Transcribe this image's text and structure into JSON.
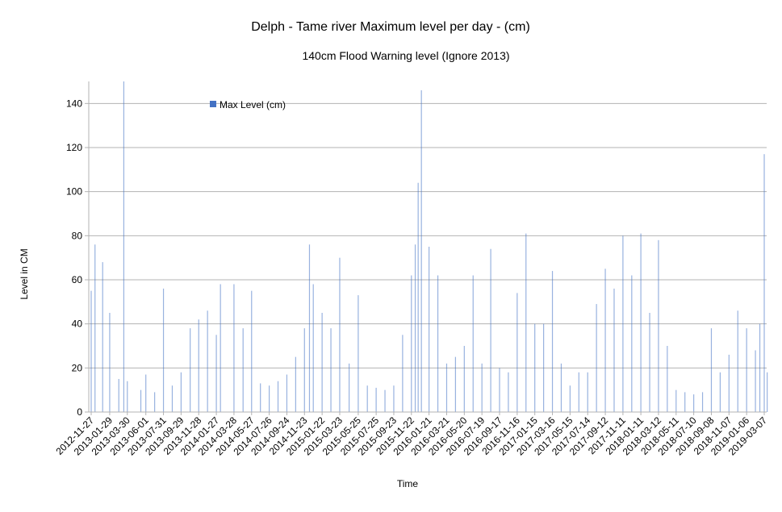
{
  "chart_data": {
    "type": "bar",
    "title": "Delph - Tame river Maximum level per day  - (cm)",
    "subtitle": "140cm  Flood Warning level (Ignore 2013)",
    "xlabel": "Time",
    "ylabel": "Level in CM",
    "ylim": [
      0,
      150
    ],
    "yticks": [
      0,
      20,
      40,
      60,
      80,
      100,
      120,
      140
    ],
    "grid": true,
    "legend": {
      "placement": "top-left",
      "entries": [
        "Max Level (cm)"
      ]
    },
    "series": [
      {
        "name": "Max Level (cm)",
        "color": "#4472c4",
        "points": [
          {
            "x": "2012-11-27",
            "y": 55
          },
          {
            "x": "2012-12-10",
            "y": 76
          },
          {
            "x": "2013-01-05",
            "y": 68
          },
          {
            "x": "2013-01-29",
            "y": 45
          },
          {
            "x": "2013-03-01",
            "y": 15
          },
          {
            "x": "2013-03-18",
            "y": 150
          },
          {
            "x": "2013-03-30",
            "y": 14
          },
          {
            "x": "2013-05-15",
            "y": 10
          },
          {
            "x": "2013-06-01",
            "y": 17
          },
          {
            "x": "2013-07-01",
            "y": 9
          },
          {
            "x": "2013-07-31",
            "y": 56
          },
          {
            "x": "2013-08-30",
            "y": 12
          },
          {
            "x": "2013-09-29",
            "y": 18
          },
          {
            "x": "2013-10-30",
            "y": 38
          },
          {
            "x": "2013-11-28",
            "y": 42
          },
          {
            "x": "2013-12-28",
            "y": 46
          },
          {
            "x": "2014-01-27",
            "y": 35
          },
          {
            "x": "2014-02-10",
            "y": 58
          },
          {
            "x": "2014-03-28",
            "y": 58
          },
          {
            "x": "2014-04-28",
            "y": 38
          },
          {
            "x": "2014-05-27",
            "y": 55
          },
          {
            "x": "2014-06-26",
            "y": 13
          },
          {
            "x": "2014-07-26",
            "y": 12
          },
          {
            "x": "2014-08-25",
            "y": 14
          },
          {
            "x": "2014-09-24",
            "y": 17
          },
          {
            "x": "2014-10-24",
            "y": 25
          },
          {
            "x": "2014-11-23",
            "y": 38
          },
          {
            "x": "2014-12-10",
            "y": 76
          },
          {
            "x": "2014-12-23",
            "y": 58
          },
          {
            "x": "2015-01-22",
            "y": 45
          },
          {
            "x": "2015-02-21",
            "y": 38
          },
          {
            "x": "2015-03-23",
            "y": 70
          },
          {
            "x": "2015-04-24",
            "y": 22
          },
          {
            "x": "2015-05-25",
            "y": 53
          },
          {
            "x": "2015-06-25",
            "y": 12
          },
          {
            "x": "2015-07-25",
            "y": 11
          },
          {
            "x": "2015-08-24",
            "y": 10
          },
          {
            "x": "2015-09-23",
            "y": 12
          },
          {
            "x": "2015-10-23",
            "y": 35
          },
          {
            "x": "2015-11-22",
            "y": 62
          },
          {
            "x": "2015-12-05",
            "y": 76
          },
          {
            "x": "2015-12-15",
            "y": 104
          },
          {
            "x": "2015-12-26",
            "y": 146
          },
          {
            "x": "2016-01-21",
            "y": 75
          },
          {
            "x": "2016-02-20",
            "y": 62
          },
          {
            "x": "2016-03-21",
            "y": 22
          },
          {
            "x": "2016-04-20",
            "y": 25
          },
          {
            "x": "2016-05-20",
            "y": 30
          },
          {
            "x": "2016-06-19",
            "y": 62
          },
          {
            "x": "2016-07-19",
            "y": 22
          },
          {
            "x": "2016-08-18",
            "y": 74
          },
          {
            "x": "2016-09-17",
            "y": 20
          },
          {
            "x": "2016-10-17",
            "y": 18
          },
          {
            "x": "2016-11-16",
            "y": 54
          },
          {
            "x": "2016-12-16",
            "y": 81
          },
          {
            "x": "2017-01-15",
            "y": 40
          },
          {
            "x": "2017-02-14",
            "y": 40
          },
          {
            "x": "2017-03-16",
            "y": 64
          },
          {
            "x": "2017-04-15",
            "y": 22
          },
          {
            "x": "2017-05-15",
            "y": 12
          },
          {
            "x": "2017-06-14",
            "y": 18
          },
          {
            "x": "2017-07-14",
            "y": 18
          },
          {
            "x": "2017-08-13",
            "y": 49
          },
          {
            "x": "2017-09-12",
            "y": 65
          },
          {
            "x": "2017-10-12",
            "y": 56
          },
          {
            "x": "2017-11-11",
            "y": 80
          },
          {
            "x": "2017-12-11",
            "y": 62
          },
          {
            "x": "2018-01-11",
            "y": 81
          },
          {
            "x": "2018-02-10",
            "y": 45
          },
          {
            "x": "2018-03-12",
            "y": 78
          },
          {
            "x": "2018-04-11",
            "y": 30
          },
          {
            "x": "2018-05-11",
            "y": 10
          },
          {
            "x": "2018-06-10",
            "y": 9
          },
          {
            "x": "2018-07-10",
            "y": 8
          },
          {
            "x": "2018-08-09",
            "y": 9
          },
          {
            "x": "2018-09-08",
            "y": 38
          },
          {
            "x": "2018-10-08",
            "y": 18
          },
          {
            "x": "2018-11-07",
            "y": 26
          },
          {
            "x": "2018-12-07",
            "y": 46
          },
          {
            "x": "2019-01-06",
            "y": 38
          },
          {
            "x": "2019-02-05",
            "y": 28
          },
          {
            "x": "2019-02-20",
            "y": 40
          },
          {
            "x": "2019-03-07",
            "y": 117
          },
          {
            "x": "2019-03-17",
            "y": 18
          }
        ]
      }
    ],
    "x_tick_labels": [
      "2012-11-27",
      "2013-01-29",
      "2013-03-30",
      "2013-06-01",
      "2013-07-31",
      "2013-09-29",
      "2013-11-28",
      "2014-01-27",
      "2014-03-28",
      "2014-05-27",
      "2014-07-26",
      "2014-09-24",
      "2014-11-23",
      "2015-01-22",
      "2015-03-23",
      "2015-05-25",
      "2015-07-25",
      "2015-09-23",
      "2015-11-22",
      "2016-01-21",
      "2016-03-21",
      "2016-05-20",
      "2016-07-19",
      "2016-09-17",
      "2016-11-16",
      "2017-01-15",
      "2017-03-16",
      "2017-05-15",
      "2017-07-14",
      "2017-09-12",
      "2017-11-11",
      "2018-01-11",
      "2018-03-12",
      "2018-05-11",
      "2018-07-10",
      "2018-09-08",
      "2018-11-07",
      "2019-01-06",
      "2019-03-07"
    ]
  }
}
